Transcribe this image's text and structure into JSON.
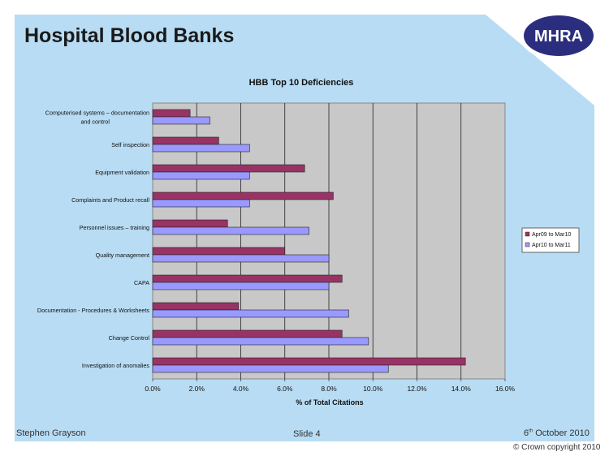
{
  "slide": {
    "title": "Hospital Blood Banks",
    "logo_text": "MHRA",
    "footer_author": "Stephen Grayson",
    "footer_slide": "Slide 4",
    "footer_date_day": "6",
    "footer_date_suffix": "th",
    "footer_date_rest": " October 2010",
    "copyright_symbol": "©",
    "copyright_text": "Crown copyright 2010"
  },
  "colors": {
    "background": "#b8dcf4",
    "plot_area": "#c8c8c8",
    "logo": "#2b2e7e",
    "series_1": "#993366",
    "series_2": "#9999ff"
  },
  "chart_data": {
    "type": "bar",
    "orientation": "horizontal",
    "title": "HBB  Top 10 Deficiencies",
    "xlabel": "% of Total Citations",
    "ylabel": "",
    "xlim": [
      0,
      16
    ],
    "x_ticks": [
      "0.0%",
      "2.0%",
      "4.0%",
      "6.0%",
      "8.0%",
      "10.0%",
      "12.0%",
      "14.0%",
      "16.0%"
    ],
    "grid": "vertical",
    "legend_position": "right",
    "categories": [
      [
        "Computerised systems – documentation",
        "and control"
      ],
      [
        "Self inspection"
      ],
      [
        "Equipment validation"
      ],
      [
        "Complaints and Product recall"
      ],
      [
        "Personnel issues – training"
      ],
      [
        "Quality management"
      ],
      [
        "CAPA"
      ],
      [
        "Documentation - Procedures & Worksheets"
      ],
      [
        "Change Control"
      ],
      [
        "Investigation of anomalies"
      ]
    ],
    "series": [
      {
        "name": "Apr09 to Mar10",
        "color": "#993366",
        "values": [
          1.7,
          3.0,
          6.9,
          8.2,
          3.4,
          6.0,
          8.6,
          3.9,
          8.6,
          14.2
        ]
      },
      {
        "name": "Apr10 to Mar11",
        "color": "#9999ff",
        "values": [
          2.6,
          4.4,
          4.4,
          4.4,
          7.1,
          8.0,
          8.0,
          8.9,
          9.8,
          10.7
        ]
      }
    ]
  }
}
